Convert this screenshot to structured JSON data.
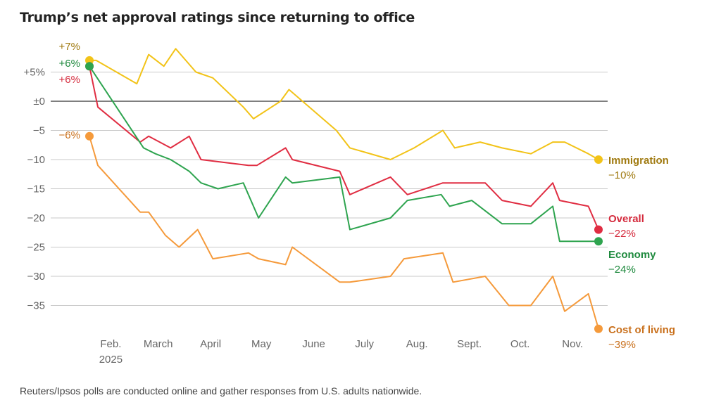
{
  "title": "Trump’s net approval ratings since returning to office",
  "note": "Reuters/Ipsos polls are conducted online and gather responses from U.S. adults nationwide.",
  "chart_data": {
    "type": "line",
    "title": "Trump’s net approval ratings since returning to office",
    "xlabel": "",
    "ylabel": "",
    "ylim": [
      -39,
      8
    ],
    "grid": true,
    "x_axis": {
      "type": "date",
      "ticks": [
        {
          "date": "2025-02-01",
          "label": "Feb.",
          "sublabel": "2025"
        },
        {
          "date": "2025-03-01",
          "label": "March"
        },
        {
          "date": "2025-04-01",
          "label": "April"
        },
        {
          "date": "2025-05-01",
          "label": "May"
        },
        {
          "date": "2025-06-01",
          "label": "June"
        },
        {
          "date": "2025-07-01",
          "label": "July"
        },
        {
          "date": "2025-08-01",
          "label": "Aug."
        },
        {
          "date": "2025-09-01",
          "label": "Sept."
        },
        {
          "date": "2025-10-01",
          "label": "Oct."
        },
        {
          "date": "2025-11-01",
          "label": "Nov."
        }
      ]
    },
    "y_ticks": [
      {
        "value": 5,
        "label": "+5%"
      },
      {
        "value": 0,
        "label": "±0"
      },
      {
        "value": -5,
        "label": "−5"
      },
      {
        "value": -10,
        "label": "−10"
      },
      {
        "value": -15,
        "label": "−15"
      },
      {
        "value": -20,
        "label": "−20"
      },
      {
        "value": -25,
        "label": "−25"
      },
      {
        "value": -30,
        "label": "−30"
      },
      {
        "value": -35,
        "label": "−35"
      }
    ],
    "series": [
      {
        "name": "Immigration",
        "color": "#f2c318",
        "label_color": "#a07a10",
        "start_label": "+7%",
        "end_label": "−10%",
        "points": [
          [
            "2025-01-26",
            7
          ],
          [
            "2025-01-30",
            7
          ],
          [
            "2025-02-23",
            3
          ],
          [
            "2025-03-02",
            8
          ],
          [
            "2025-03-11",
            6
          ],
          [
            "2025-03-18",
            9
          ],
          [
            "2025-03-30",
            5
          ],
          [
            "2025-04-09",
            4
          ],
          [
            "2025-04-27",
            -1
          ],
          [
            "2025-05-03",
            -3
          ],
          [
            "2025-05-19",
            0
          ],
          [
            "2025-05-24",
            2
          ],
          [
            "2025-06-21",
            -5
          ],
          [
            "2025-06-29",
            -8
          ],
          [
            "2025-07-23",
            -10
          ],
          [
            "2025-08-06",
            -8
          ],
          [
            "2025-08-23",
            -5
          ],
          [
            "2025-08-30",
            -8
          ],
          [
            "2025-09-14",
            -7
          ],
          [
            "2025-09-27",
            -8
          ],
          [
            "2025-10-14",
            -9
          ],
          [
            "2025-10-27",
            -7
          ],
          [
            "2025-11-03",
            -7
          ],
          [
            "2025-11-17",
            -9
          ],
          [
            "2025-11-23",
            -10
          ]
        ]
      },
      {
        "name": "Overall",
        "color": "#e02d42",
        "label_color": "#d42a3c",
        "start_label": "+6%",
        "end_label": "−22%",
        "points": [
          [
            "2025-01-26",
            6
          ],
          [
            "2025-01-31",
            -1
          ],
          [
            "2025-02-25",
            -7
          ],
          [
            "2025-03-02",
            -6
          ],
          [
            "2025-03-15",
            -8
          ],
          [
            "2025-03-26",
            -6
          ],
          [
            "2025-04-02",
            -10
          ],
          [
            "2025-04-30",
            -11
          ],
          [
            "2025-05-05",
            -11
          ],
          [
            "2025-05-22",
            -8
          ],
          [
            "2025-05-26",
            -10
          ],
          [
            "2025-06-23",
            -12
          ],
          [
            "2025-06-29",
            -16
          ],
          [
            "2025-07-23",
            -13
          ],
          [
            "2025-08-02",
            -16
          ],
          [
            "2025-08-23",
            -14
          ],
          [
            "2025-09-09",
            -14
          ],
          [
            "2025-09-17",
            -14
          ],
          [
            "2025-09-27",
            -17
          ],
          [
            "2025-10-14",
            -18
          ],
          [
            "2025-10-27",
            -14
          ],
          [
            "2025-10-31",
            -17
          ],
          [
            "2025-11-17",
            -18
          ],
          [
            "2025-11-23",
            -22
          ]
        ]
      },
      {
        "name": "Economy",
        "color": "#2ea44f",
        "label_color": "#1f8a3e",
        "start_label": "+6%",
        "end_label": "−24%",
        "points": [
          [
            "2025-01-26",
            6
          ],
          [
            "2025-02-27",
            -8
          ],
          [
            "2025-03-06",
            -9
          ],
          [
            "2025-03-15",
            -10
          ],
          [
            "2025-03-26",
            -12
          ],
          [
            "2025-04-02",
            -14
          ],
          [
            "2025-04-12",
            -15
          ],
          [
            "2025-04-27",
            -14
          ],
          [
            "2025-05-06",
            -20
          ],
          [
            "2025-05-22",
            -13
          ],
          [
            "2025-05-26",
            -14
          ],
          [
            "2025-06-23",
            -13
          ],
          [
            "2025-06-29",
            -22
          ],
          [
            "2025-07-23",
            -20
          ],
          [
            "2025-08-02",
            -17
          ],
          [
            "2025-08-22",
            -16
          ],
          [
            "2025-08-27",
            -18
          ],
          [
            "2025-09-09",
            -17
          ],
          [
            "2025-09-27",
            -21
          ],
          [
            "2025-10-14",
            -21
          ],
          [
            "2025-10-27",
            -18
          ],
          [
            "2025-10-31",
            -24
          ],
          [
            "2025-11-17",
            -24
          ],
          [
            "2025-11-23",
            -24
          ]
        ]
      },
      {
        "name": "Cost of living",
        "color": "#f59a3b",
        "label_color": "#c9701c",
        "start_label": "−6%",
        "end_label": "−39%",
        "points": [
          [
            "2025-01-26",
            -6
          ],
          [
            "2025-01-31",
            -11
          ],
          [
            "2025-02-25",
            -19
          ],
          [
            "2025-03-02",
            -19
          ],
          [
            "2025-03-12",
            -23
          ],
          [
            "2025-03-20",
            -25
          ],
          [
            "2025-03-31",
            -22
          ],
          [
            "2025-04-09",
            -27
          ],
          [
            "2025-04-30",
            -26
          ],
          [
            "2025-05-06",
            -27
          ],
          [
            "2025-05-22",
            -28
          ],
          [
            "2025-05-26",
            -25
          ],
          [
            "2025-06-23",
            -31
          ],
          [
            "2025-06-29",
            -31
          ],
          [
            "2025-07-23",
            -30
          ],
          [
            "2025-07-31",
            -27
          ],
          [
            "2025-08-23",
            -26
          ],
          [
            "2025-08-29",
            -31
          ],
          [
            "2025-09-17",
            -30
          ],
          [
            "2025-10-01",
            -35
          ],
          [
            "2025-10-14",
            -35
          ],
          [
            "2025-10-27",
            -30
          ],
          [
            "2025-11-03",
            -36
          ],
          [
            "2025-11-17",
            -33
          ],
          [
            "2025-11-23",
            -39
          ]
        ]
      }
    ]
  }
}
